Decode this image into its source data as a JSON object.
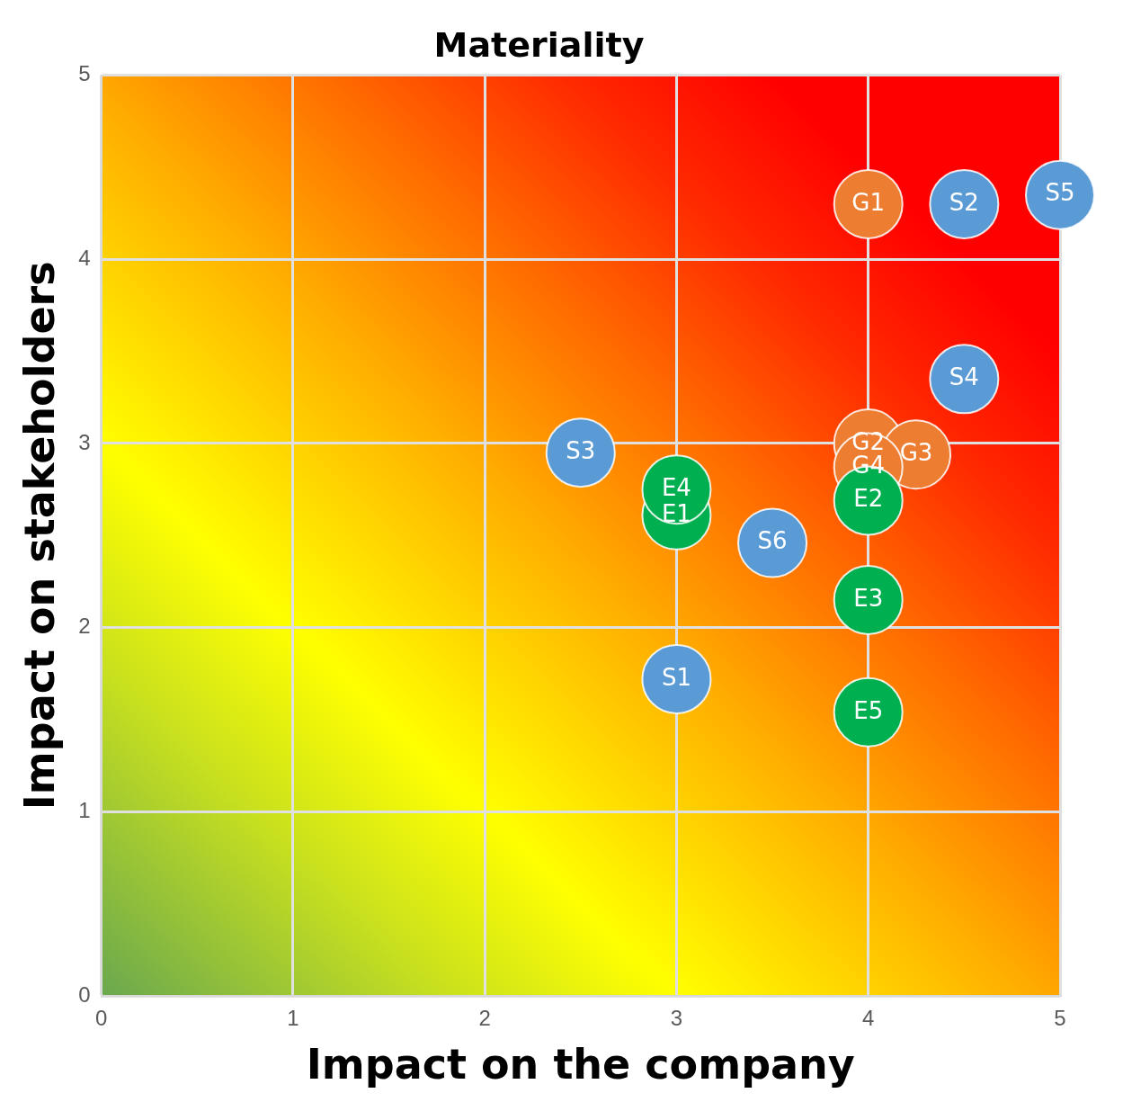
{
  "chart_data": {
    "type": "scatter",
    "title": "Materiality",
    "xlabel": "Impact on the company",
    "ylabel": "Impact on stakeholders",
    "xlim": [
      0,
      5
    ],
    "ylim": [
      0,
      5
    ],
    "xticks": [
      0,
      1,
      2,
      3,
      4,
      5
    ],
    "yticks": [
      0,
      1,
      2,
      3,
      4,
      5
    ],
    "grid": true,
    "legend": false,
    "marker": "circle",
    "series": [
      {
        "color": "#00b050",
        "x": [
          3,
          4,
          4,
          3,
          4
        ],
        "values": [
          2.61,
          2.69,
          2.15,
          2.75,
          1.54
        ],
        "value_labels": [
          "E1",
          "E2",
          "E3",
          "E4",
          "E5"
        ]
      },
      {
        "color": "#5b9bd5",
        "x": [
          3,
          4.5,
          2.5,
          4.5,
          5,
          3.5
        ],
        "values": [
          1.72,
          4.3,
          2.95,
          3.35,
          4.35,
          2.46
        ],
        "value_labels": [
          "S1",
          "S2",
          "S3",
          "S4",
          "S5",
          "S6"
        ]
      },
      {
        "color": "#ed7d31",
        "x": [
          4,
          4,
          4.25,
          4
        ],
        "values": [
          4.3,
          3.0,
          2.94,
          2.87
        ],
        "value_labels": [
          "G1",
          "G2",
          "G3",
          "G4"
        ]
      }
    ]
  }
}
